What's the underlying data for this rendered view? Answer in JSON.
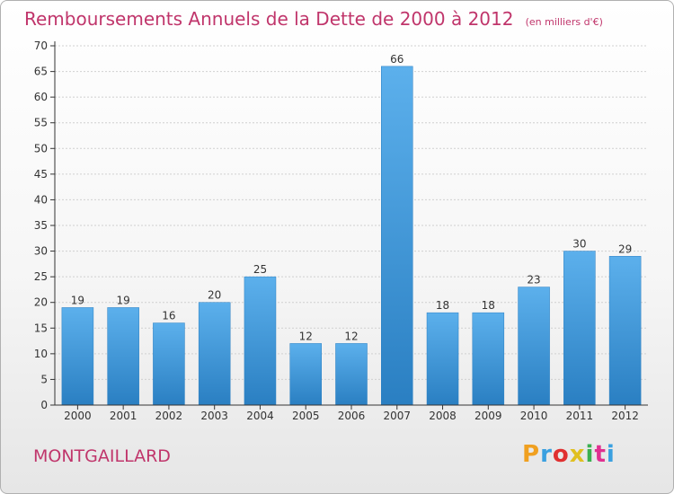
{
  "header": {
    "title": "Remboursements Annuels de la Dette de 2000 à 2012",
    "subtitle": "(en milliers d'€)"
  },
  "footer": {
    "city": "MONTGAILLARD",
    "logo": "Proxiti",
    "logo_colors": [
      "#f0a020",
      "#3aa0e0",
      "#e03030",
      "#e0c020",
      "#3ab050",
      "#e03090",
      "#3aa0e0"
    ]
  },
  "colors": {
    "bar": "#3d95d8",
    "bar_light": "#5cb0ec",
    "axis": "#333333",
    "grid": "#d0d0d0",
    "accent": "#c0356b"
  },
  "chart_data": {
    "type": "bar",
    "title": "Remboursements Annuels de la Dette de 2000 à 2012",
    "subtitle": "(en milliers d'€)",
    "xlabel": "",
    "ylabel": "",
    "categories": [
      "2000",
      "2001",
      "2002",
      "2003",
      "2004",
      "2005",
      "2006",
      "2007",
      "2008",
      "2009",
      "2010",
      "2011",
      "2012"
    ],
    "values": [
      19,
      19,
      16,
      20,
      25,
      12,
      12,
      66,
      18,
      18,
      23,
      30,
      29
    ],
    "ylim": [
      0,
      70
    ],
    "yticks": [
      0,
      5,
      10,
      15,
      20,
      25,
      30,
      35,
      40,
      45,
      50,
      55,
      60,
      65,
      70
    ],
    "grid": true,
    "data_labels": true
  }
}
